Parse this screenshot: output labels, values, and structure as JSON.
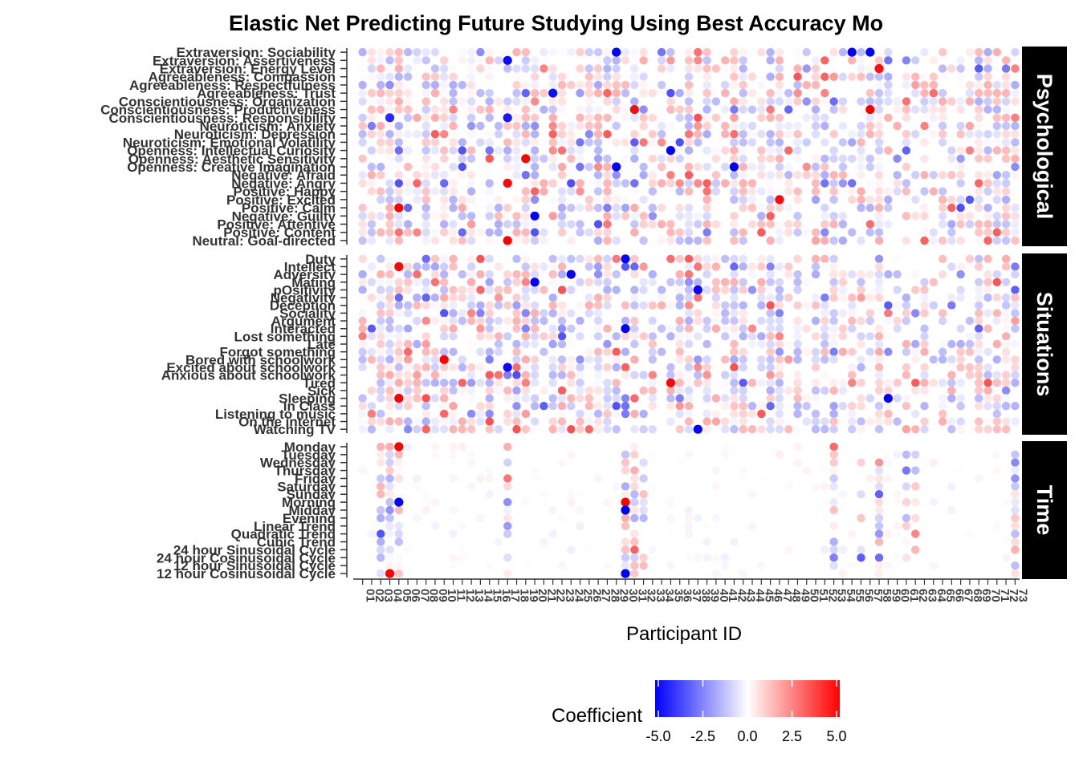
{
  "chart_data": {
    "type": "heatmap",
    "title": "Elastic Net Predicting Future Studying Using Best Accuracy Mo",
    "xlabel": "Participant ID",
    "ylabel": "",
    "participant_count": 73,
    "facets": [
      {
        "name": "Psychological",
        "rows": [
          "Extraversion: Sociability",
          "Extraversion: Assertiveness",
          "Extraversion: Energy Level",
          "Agreeableness: Compassion",
          "Agreeableness: Respectfulness",
          "Agreeableness: Trust",
          "Conscientiousness: Organization",
          "Conscientiousness: Productiveness",
          "Conscientiousness: Responsibility",
          "Neuroticism: Anxiety",
          "Neuroticism: Depression",
          "Neuroticism: Emotional Volatility",
          "Openness: Intellectual Curiosity",
          "Openness: Aesthetic Sensitivity",
          "Openness: Creative Imagination",
          "Negative: Afraid",
          "Negative: Angry",
          "Positive: Happy",
          "Positive: Excited",
          "Positive: Calm",
          "Negative: Guilty",
          "Positive: Attentive",
          "Positive: Content",
          "Neutral: Goal-directed"
        ]
      },
      {
        "name": "Situations",
        "rows": [
          "Duty",
          "Intellect",
          "Adversity",
          "Mating",
          "pOsitivity",
          "Negativity",
          "Deception",
          "Sociality",
          "Argument",
          "Interacted",
          "Lost something",
          "Late",
          "Forgot something",
          "Bored with schoolwork",
          "Excited about schoolwork",
          "Anxious about schoolwork",
          "Tired",
          "Sick",
          "Sleeping",
          "In Class",
          "Listening to music",
          "On the internet",
          "Watching TV"
        ]
      },
      {
        "name": "Time",
        "rows": [
          "Monday",
          "Tuesday",
          "Wednesday",
          "Thursday",
          "Friday",
          "Saturday",
          "Sunday",
          "Morning",
          "Midday",
          "Evening",
          "Linear Trend",
          "Quadratic Trend",
          "Cubic Trend",
          "24 hour Sinusoidal Cycle",
          "24 hour Cosinusoidal Cycle",
          "12 hour Sinusoidal Cycle",
          "12 hour Cosinusoidal Cycle"
        ]
      }
    ],
    "legend": {
      "title": "Coefficient",
      "placement": "bottom",
      "ticks": [
        "-5.0",
        "-2.5",
        "0.0",
        "2.5",
        "5.0"
      ],
      "range": [
        -5,
        5
      ],
      "colors": {
        "low": "#0000ff",
        "mid": "#ffffff",
        "high": "#ff0000"
      }
    },
    "highlights": [
      {
        "facet": "Psychological",
        "participant": 3,
        "row": 8,
        "value": -4.2
      },
      {
        "facet": "Psychological",
        "participant": 4,
        "row": 19,
        "value": 5.0
      },
      {
        "facet": "Psychological",
        "participant": 16,
        "row": 1,
        "value": -4.8
      },
      {
        "facet": "Psychological",
        "participant": 16,
        "row": 8,
        "value": -4.5
      },
      {
        "facet": "Psychological",
        "participant": 16,
        "row": 16,
        "value": 4.9
      },
      {
        "facet": "Psychological",
        "participant": 16,
        "row": 23,
        "value": 5.0
      },
      {
        "facet": "Psychological",
        "participant": 18,
        "row": 13,
        "value": 5.0
      },
      {
        "facet": "Psychological",
        "participant": 19,
        "row": 20,
        "value": -5.0
      },
      {
        "facet": "Psychological",
        "participant": 21,
        "row": 5,
        "value": -4.7
      },
      {
        "facet": "Psychological",
        "participant": 28,
        "row": 0,
        "value": -5.0
      },
      {
        "facet": "Psychological",
        "participant": 28,
        "row": 14,
        "value": -4.9
      },
      {
        "facet": "Psychological",
        "participant": 30,
        "row": 7,
        "value": 4.8
      },
      {
        "facet": "Psychological",
        "participant": 34,
        "row": 12,
        "value": -5.0
      },
      {
        "facet": "Psychological",
        "participant": 41,
        "row": 14,
        "value": -5.0
      },
      {
        "facet": "Psychological",
        "participant": 46,
        "row": 18,
        "value": 4.8
      },
      {
        "facet": "Psychological",
        "participant": 54,
        "row": 0,
        "value": -5.0
      },
      {
        "facet": "Psychological",
        "participant": 56,
        "row": 0,
        "value": -5.0
      },
      {
        "facet": "Psychological",
        "participant": 56,
        "row": 7,
        "value": 5.0
      },
      {
        "facet": "Psychological",
        "participant": 57,
        "row": 2,
        "value": 4.7
      },
      {
        "facet": "Situations",
        "participant": 4,
        "row": 1,
        "value": 4.9
      },
      {
        "facet": "Situations",
        "participant": 4,
        "row": 18,
        "value": 5.0
      },
      {
        "facet": "Situations",
        "participant": 9,
        "row": 13,
        "value": 5.0
      },
      {
        "facet": "Situations",
        "participant": 16,
        "row": 14,
        "value": -4.8
      },
      {
        "facet": "Situations",
        "participant": 19,
        "row": 3,
        "value": -5.0
      },
      {
        "facet": "Situations",
        "participant": 23,
        "row": 2,
        "value": -5.0
      },
      {
        "facet": "Situations",
        "participant": 29,
        "row": 0,
        "value": -4.9
      },
      {
        "facet": "Situations",
        "participant": 29,
        "row": 9,
        "value": -5.0
      },
      {
        "facet": "Situations",
        "participant": 34,
        "row": 16,
        "value": 4.9
      },
      {
        "facet": "Situations",
        "participant": 37,
        "row": 4,
        "value": -4.9
      },
      {
        "facet": "Situations",
        "participant": 37,
        "row": 22,
        "value": -5.0
      },
      {
        "facet": "Situations",
        "participant": 58,
        "row": 18,
        "value": -5.0
      },
      {
        "facet": "Time",
        "participant": 4,
        "row": 0,
        "value": 5.0
      },
      {
        "facet": "Time",
        "participant": 4,
        "row": 7,
        "value": -4.9
      },
      {
        "facet": "Time",
        "participant": 29,
        "row": 7,
        "value": 5.0
      },
      {
        "facet": "Time",
        "participant": 29,
        "row": 8,
        "value": -5.0
      },
      {
        "facet": "Time",
        "participant": 29,
        "row": 16,
        "value": -5.0
      },
      {
        "facet": "Time",
        "participant": 3,
        "row": 16,
        "value": 5.0
      }
    ]
  }
}
